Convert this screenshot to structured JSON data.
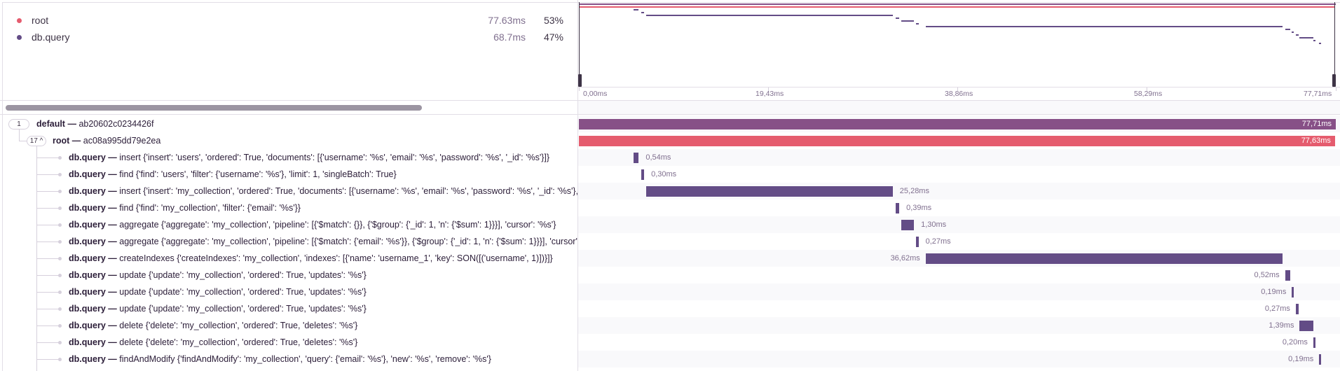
{
  "colors": {
    "root": "#e55c6e",
    "db_query": "#634c86",
    "default": "#875087"
  },
  "legend": [
    {
      "name": "root",
      "duration": "77.63ms",
      "percent": "53%",
      "color": "#e55c6e"
    },
    {
      "name": "db.query",
      "duration": "68.7ms",
      "percent": "47%",
      "color": "#634c86"
    }
  ],
  "axis": {
    "ticks": [
      "0,00ms",
      "19,43ms",
      "38,86ms",
      "58,29ms",
      "77,71ms"
    ],
    "total_ms": 77.71
  },
  "spans": [
    {
      "badge": "1",
      "op": "default",
      "sep": " — ",
      "desc": "ab20602c0234426f",
      "start": 0,
      "duration": 77.71,
      "duration_label": "77,71ms",
      "color": "#875087",
      "depth": 0
    },
    {
      "badge": "17 ^",
      "op": "root",
      "sep": " — ",
      "desc": "ac08a995dd79e2ea",
      "start": 0,
      "duration": 77.63,
      "duration_label": "77,63ms",
      "color": "#e55c6e",
      "depth": 1
    },
    {
      "op": "db.query",
      "sep": " — ",
      "desc": "insert {'insert': 'users', 'ordered': True, 'documents': [{'username': '%s', 'email': '%s', 'password': '%s', '_id': '%s'}]}",
      "start": 5.6,
      "duration": 0.54,
      "duration_label": "0,54ms",
      "color": "#634c86",
      "depth": 2
    },
    {
      "op": "db.query",
      "sep": " — ",
      "desc": "find {'find': 'users', 'filter': {'username': '%s'}, 'limit': 1, 'singleBatch': True}",
      "start": 6.4,
      "duration": 0.3,
      "duration_label": "0,30ms",
      "color": "#634c86",
      "depth": 2
    },
    {
      "op": "db.query",
      "sep": " — ",
      "desc": "insert {'insert': 'my_collection', 'ordered': True, 'documents': [{'username': '%s', 'email': '%s', 'password': '%s', '_id': '%s'}, {'username': '%s'}]}",
      "start": 6.94,
      "duration": 25.28,
      "duration_label": "25,28ms",
      "color": "#634c86",
      "depth": 2
    },
    {
      "op": "db.query",
      "sep": " — ",
      "desc": "find {'find': 'my_collection', 'filter': {'email': '%s'}}",
      "start": 32.5,
      "duration": 0.39,
      "duration_label": "0,39ms",
      "color": "#634c86",
      "depth": 2
    },
    {
      "op": "db.query",
      "sep": " — ",
      "desc": "aggregate {'aggregate': 'my_collection', 'pipeline': [{'$match': {}}, {'$group': {'_id': 1, 'n': {'$sum': 1}}}], 'cursor': '%s'}",
      "start": 33.1,
      "duration": 1.3,
      "duration_label": "1,30ms",
      "color": "#634c86",
      "depth": 2
    },
    {
      "op": "db.query",
      "sep": " — ",
      "desc": "aggregate {'aggregate': 'my_collection', 'pipeline': [{'$match': {'email': '%s'}}, {'$group': {'_id': 1, 'n': {'$sum': 1}}}], 'cursor': '%s'}",
      "start": 34.6,
      "duration": 0.27,
      "duration_label": "0,27ms",
      "color": "#634c86",
      "depth": 2
    },
    {
      "op": "db.query",
      "sep": " — ",
      "desc": "createIndexes {'createIndexes': 'my_collection', 'indexes': [{'name': 'username_1', 'key': SON([('username', 1)])}]}",
      "start": 35.6,
      "duration": 36.62,
      "duration_label": "36,62ms",
      "color": "#634c86",
      "depth": 2
    },
    {
      "op": "db.query",
      "sep": " — ",
      "desc": "update {'update': 'my_collection', 'ordered': True, 'updates': '%s'}",
      "start": 72.5,
      "duration": 0.52,
      "duration_label": "0,52ms",
      "color": "#634c86",
      "depth": 2
    },
    {
      "op": "db.query",
      "sep": " — ",
      "desc": "update {'update': 'my_collection', 'ordered': True, 'updates': '%s'}",
      "start": 73.2,
      "duration": 0.19,
      "duration_label": "0,19ms",
      "color": "#634c86",
      "depth": 2
    },
    {
      "op": "db.query",
      "sep": " — ",
      "desc": "update {'update': 'my_collection', 'ordered': True, 'updates': '%s'}",
      "start": 73.6,
      "duration": 0.27,
      "duration_label": "0,27ms",
      "color": "#634c86",
      "depth": 2
    },
    {
      "op": "db.query",
      "sep": " — ",
      "desc": "delete {'delete': 'my_collection', 'ordered': True, 'deletes': '%s'}",
      "start": 74.0,
      "duration": 1.39,
      "duration_label": "1,39ms",
      "color": "#634c86",
      "depth": 2
    },
    {
      "op": "db.query",
      "sep": " — ",
      "desc": "delete {'delete': 'my_collection', 'ordered': True, 'deletes': '%s'}",
      "start": 75.4,
      "duration": 0.2,
      "duration_label": "0,20ms",
      "color": "#634c86",
      "depth": 2
    },
    {
      "op": "db.query",
      "sep": " — ",
      "desc": "findAndModify {'findAndModify': 'my_collection', 'query': {'email': '%s'}, 'new': '%s', 'remove': '%s'}",
      "start": 76.0,
      "duration": 0.19,
      "duration_label": "0,19ms",
      "color": "#634c86",
      "depth": 2
    }
  ]
}
